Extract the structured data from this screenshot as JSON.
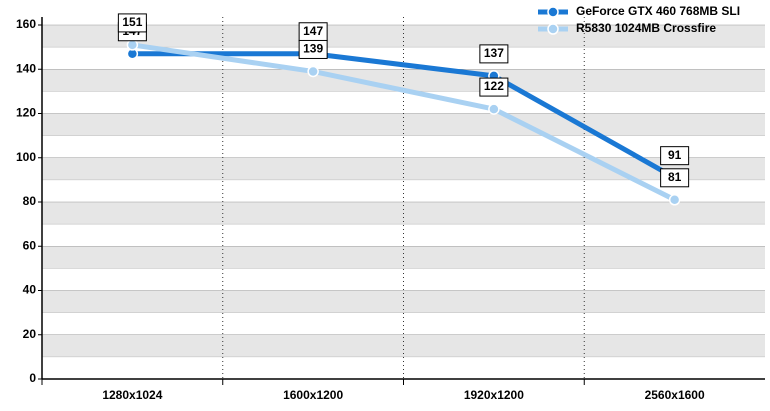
{
  "chart_data": {
    "type": "line",
    "categories": [
      "1280x1024",
      "1600x1200",
      "1920x1200",
      "2560x1600"
    ],
    "series": [
      {
        "name": "GeForce GTX 460 768MB SLI",
        "color": "#1a78d4",
        "values": [
          147,
          147,
          137,
          91
        ]
      },
      {
        "name": "R5830 1024MB Crossfire",
        "color": "#a9d1f2",
        "values": [
          151,
          139,
          122,
          81
        ]
      }
    ],
    "ylim": [
      0,
      160
    ],
    "yticks": [
      0,
      20,
      40,
      60,
      80,
      100,
      120,
      140,
      160
    ],
    "legend": "top-right",
    "grid": true
  }
}
